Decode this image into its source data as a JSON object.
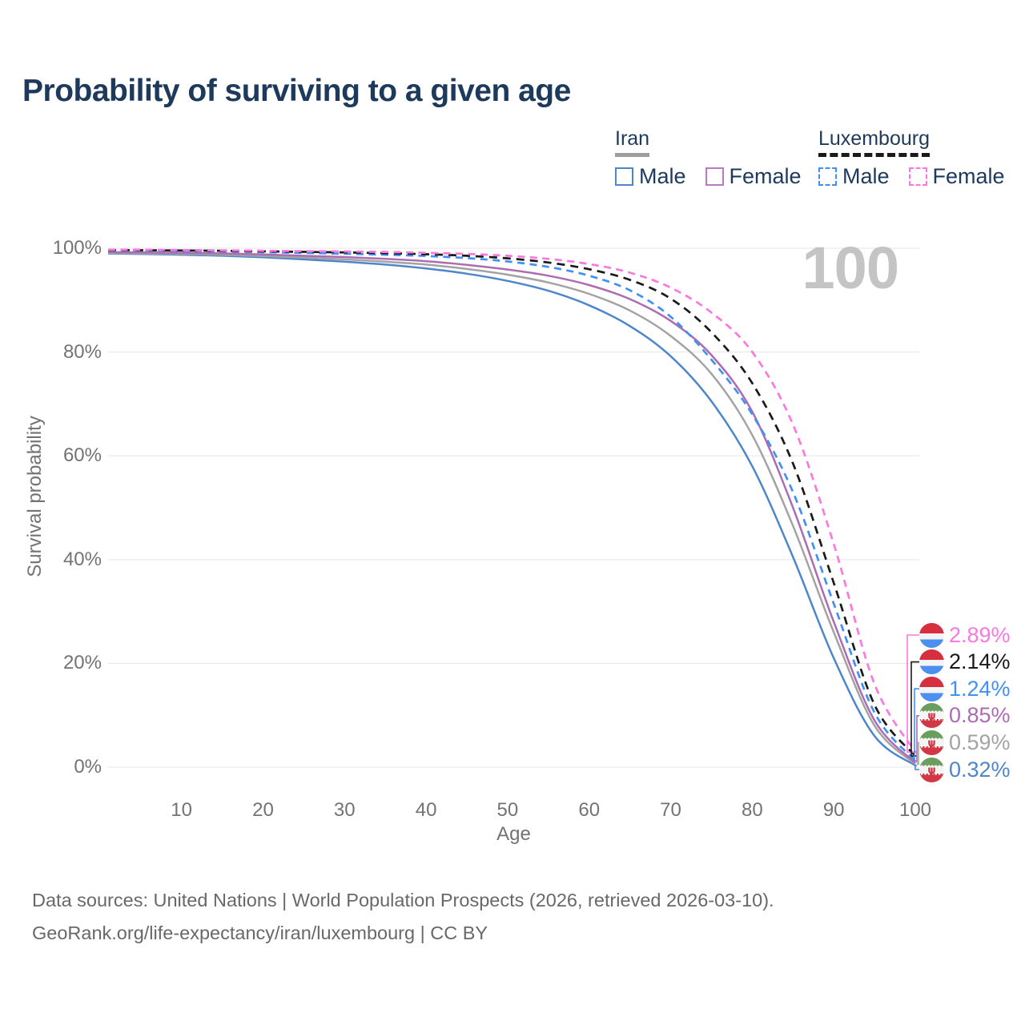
{
  "title": "Probability of surviving to a given age",
  "watermark": "100",
  "legend": {
    "groups": [
      {
        "name": "Iran",
        "underline": "solid",
        "underline_color": "#9e9e9e",
        "items": [
          {
            "label": "Male",
            "color": "#4e86cc",
            "dash": false
          },
          {
            "label": "Female",
            "color": "#bd77c4",
            "dash": false
          }
        ]
      },
      {
        "name": "Luxembourg",
        "underline": "dashed",
        "underline_color": "#1a1a1a",
        "items": [
          {
            "label": "Male",
            "color": "#4190f7",
            "dash": true
          },
          {
            "label": "Female",
            "color": "#fc78dc",
            "dash": true
          }
        ]
      }
    ]
  },
  "axes": {
    "x_label": "Age",
    "y_label": "Survival probability",
    "x_ticks": [
      10,
      20,
      30,
      40,
      50,
      60,
      70,
      80,
      90,
      100
    ],
    "y_ticks": [
      {
        "label": "100%",
        "value": 100
      },
      {
        "label": "80%",
        "value": 80
      },
      {
        "label": "60%",
        "value": 60
      },
      {
        "label": "40%",
        "value": 40
      },
      {
        "label": "20%",
        "value": 20
      },
      {
        "label": "0%",
        "value": 0
      }
    ]
  },
  "chart_data": {
    "type": "line",
    "title": "Probability of surviving to a given age",
    "xlabel": "Age",
    "ylabel": "Survival probability",
    "xlim": [
      1,
      100
    ],
    "ylim": [
      0,
      100
    ],
    "grid": "horizontal",
    "legend_position": "top-right",
    "x": [
      1,
      5,
      10,
      15,
      20,
      25,
      30,
      35,
      40,
      45,
      50,
      55,
      60,
      65,
      70,
      75,
      80,
      85,
      90,
      95,
      100
    ],
    "series": [
      {
        "name": "Luxembourg Female",
        "country": "Luxembourg",
        "sex": "Female",
        "flag": "luxembourg",
        "color": "#fc78dc",
        "dash": true,
        "end_label": "2.89%",
        "values": [
          99.72,
          99.7,
          99.65,
          99.6,
          99.52,
          99.45,
          99.38,
          99.28,
          99.12,
          98.9,
          98.55,
          97.95,
          96.95,
          95.3,
          92.4,
          87.6,
          80.0,
          66.0,
          43.0,
          16.0,
          2.89
        ]
      },
      {
        "name": "Luxembourg (both sexes)",
        "country": "Luxembourg",
        "sex": "Both",
        "flag": "luxembourg",
        "color": "#1a1a1a",
        "dash": true,
        "end_label": "2.14%",
        "values": [
          99.66,
          99.62,
          99.57,
          99.5,
          99.4,
          99.3,
          99.2,
          99.05,
          98.85,
          98.55,
          98.05,
          97.25,
          95.95,
          93.9,
          90.3,
          83.8,
          74.0,
          58.5,
          35.5,
          12.0,
          2.14
        ]
      },
      {
        "name": "Luxembourg Male",
        "country": "Luxembourg",
        "sex": "Male",
        "flag": "luxembourg",
        "color": "#4190f7",
        "dash": true,
        "end_label": "1.24%",
        "values": [
          99.6,
          99.55,
          99.48,
          99.4,
          99.25,
          99.1,
          98.95,
          98.75,
          98.5,
          98.1,
          97.45,
          96.4,
          94.7,
          91.9,
          86.8,
          78.5,
          68.0,
          53.0,
          31.5,
          10.5,
          1.24
        ]
      },
      {
        "name": "Iran Female",
        "country": "Iran",
        "sex": "Female",
        "flag": "iran",
        "color": "#ad6cb2",
        "dash": false,
        "end_label": "0.85%",
        "values": [
          99.25,
          99.2,
          99.1,
          99.0,
          98.8,
          98.55,
          98.3,
          97.95,
          97.5,
          96.8,
          95.9,
          94.7,
          92.9,
          90.2,
          86.0,
          79.4,
          68.5,
          50.0,
          28.0,
          9.0,
          0.85
        ]
      },
      {
        "name": "Iran (both sexes)",
        "country": "Iran",
        "sex": "Both",
        "flag": "iran",
        "color": "#a3a3a3",
        "dash": false,
        "end_label": "0.59%",
        "values": [
          99.1,
          99.0,
          98.9,
          98.75,
          98.5,
          98.2,
          97.85,
          97.4,
          96.85,
          96.0,
          94.9,
          93.4,
          91.2,
          88.0,
          83.1,
          75.8,
          64.0,
          46.5,
          26.0,
          8.0,
          0.59
        ]
      },
      {
        "name": "Iran Male",
        "country": "Iran",
        "sex": "Male",
        "flag": "iran",
        "color": "#4e86cc",
        "dash": false,
        "end_label": "0.32%",
        "values": [
          99.0,
          98.9,
          98.75,
          98.55,
          98.25,
          97.85,
          97.4,
          96.85,
          96.1,
          95.1,
          93.7,
          91.8,
          89.0,
          85.0,
          79.2,
          70.5,
          58.0,
          40.5,
          21.0,
          6.0,
          0.32
        ]
      }
    ]
  },
  "footer": {
    "line1": "Data sources: United Nations | World Population Prospects (2026, retrieved 2026-03-10).",
    "line2": "GeoRank.org/life-expectancy/iran/luxembourg | CC BY"
  }
}
